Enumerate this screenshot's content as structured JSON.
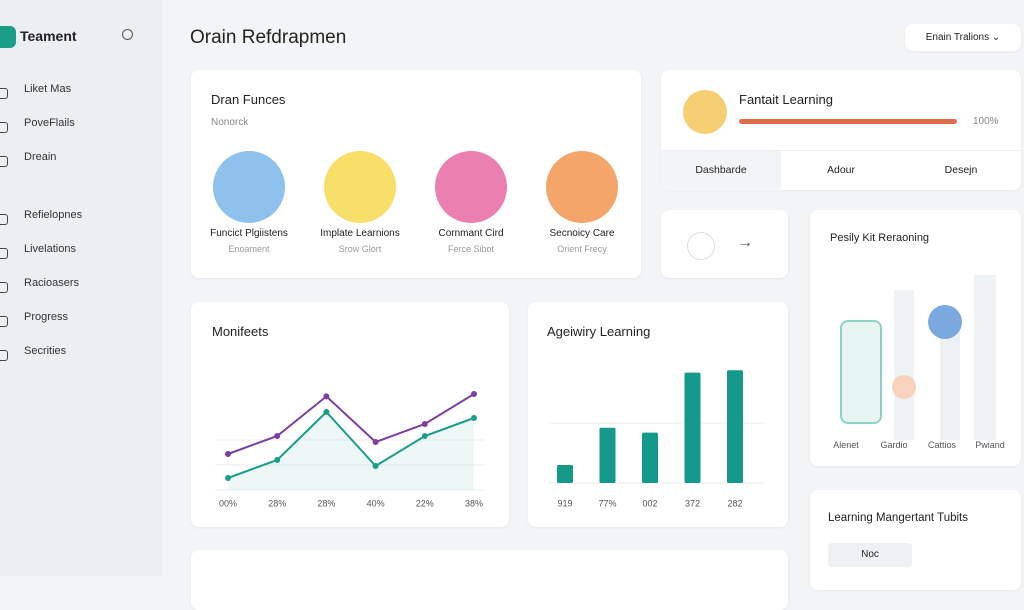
{
  "brand": "Teament",
  "nav": [
    "Liket Mas",
    "PoveFlails",
    "Dreain",
    "Refielopnes",
    "Livelations",
    "Racioasers",
    "Progress",
    "Secrities"
  ],
  "header": {
    "title": "Orain Refdrapmen",
    "button": "Enain Tralions"
  },
  "courses": {
    "title": "Dran Funces",
    "subtitle": "Nonorck",
    "items": [
      {
        "title": "Funcict Plgiistens",
        "sub": "Enoament"
      },
      {
        "title": "Implate Learnions",
        "sub": "Srow Glort"
      },
      {
        "title": "Cornmant Cird",
        "sub": "Ferce Sibot"
      },
      {
        "title": "Secnoicy Care",
        "sub": "Orient Frecy"
      }
    ]
  },
  "progress": {
    "title": "Fantait Learning",
    "value": 100,
    "label": "100%",
    "tabs": [
      "Dashbarde",
      "Adour",
      "Desejn"
    ]
  },
  "chart_data": [
    {
      "type": "line",
      "title": "Monifeets",
      "categories": [
        "00%",
        "28%",
        "28%",
        "40%",
        "22%",
        "38%"
      ],
      "ylim": [
        0,
        100
      ],
      "series": [
        {
          "name": null,
          "color": "#7b3fa0",
          "values": [
            30,
            45,
            78,
            40,
            55,
            80
          ]
        },
        {
          "name": null,
          "color": "#1a9e8a",
          "values": [
            10,
            25,
            65,
            20,
            45,
            60
          ]
        }
      ]
    },
    {
      "type": "bar",
      "title": "Ageiwiry Learning",
      "categories": [
        "919",
        "77%",
        "002",
        "372",
        "282"
      ],
      "ylim": [
        0,
        100
      ],
      "color": "#15998a",
      "values": [
        15,
        46,
        42,
        92,
        94
      ]
    }
  ],
  "skills": {
    "title": "Pesily Kit Reraoning",
    "labels": [
      "Alenet",
      "Gardio",
      "Cattios",
      "Pwiand"
    ]
  },
  "tubits": {
    "title": "Learning Mangertant Tubits",
    "button": "Noc"
  }
}
